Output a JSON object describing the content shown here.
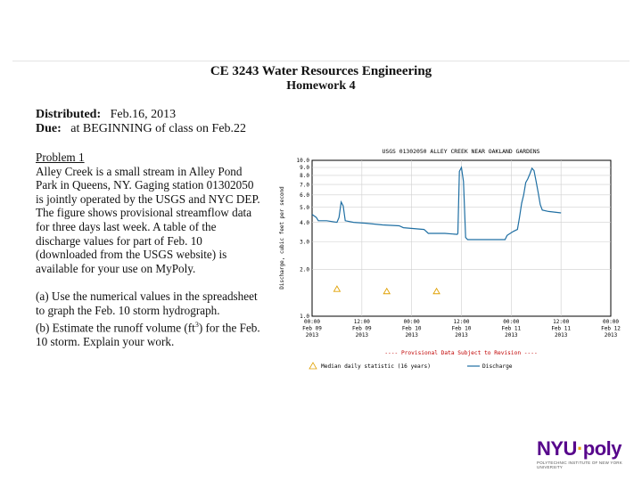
{
  "header": {
    "course_title": "CE 3243 Water Resources Engineering",
    "homework": "Homework 4"
  },
  "meta": {
    "distributed_label": "Distributed:",
    "distributed_value": "Feb.16, 2013",
    "due_label": "Due:",
    "due_value": "at BEGINNING of class on Feb.22"
  },
  "problem": {
    "heading": "Problem 1",
    "paragraph": "Alley Creek is a small stream in Alley Pond Park in Queens, NY.   Gaging station 01302050 is jointly operated by the USGS and NYC DEP.   The figure shows provisional streamflow data for three days last week.   A table of the discharge values for part of Feb. 10 (downloaded from the USGS website) is available for your use on MyPoly.",
    "part_a": "(a) Use the numerical values in the spreadsheet to graph the Feb. 10 storm hydrograph.",
    "part_b_prefix": "(b) Estimate the runoff volume (ft",
    "part_b_sup": "3",
    "part_b_suffix": ") for the Feb. 10 storm.   Explain your work."
  },
  "chart_data": {
    "type": "line",
    "title": "USGS 01302050 ALLEY CREEK NEAR OAKLAND GARDENS",
    "ylabel": "Discharge, cubic feet per second",
    "xlabel": "",
    "y_scale": "log",
    "ylim": [
      1.0,
      10.0
    ],
    "y_ticks": [
      "10.0",
      "9.0",
      "8.0",
      "7.0",
      "6.0",
      "5.0",
      "4.0",
      "3.0",
      "2.0",
      "1.0"
    ],
    "x_ticks": [
      [
        "00:00",
        "Feb 09",
        "2013"
      ],
      [
        "12:00",
        "Feb 09",
        "2013"
      ],
      [
        "00:00",
        "Feb 10",
        "2013"
      ],
      [
        "12:00",
        "Feb 10",
        "2013"
      ],
      [
        "00:00",
        "Feb 11",
        "2013"
      ],
      [
        "12:00",
        "Feb 11",
        "2013"
      ],
      [
        "00:00",
        "Feb 12",
        "2013"
      ]
    ],
    "provisional_note": "---- Provisional Data Subject to Revision ----",
    "grid": true,
    "series": [
      {
        "name": "Discharge",
        "color": "#1f6fa3",
        "points": [
          [
            0,
            4.5
          ],
          [
            2,
            4.3
          ],
          [
            3,
            4.1
          ],
          [
            7,
            4.1
          ],
          [
            12,
            4.0
          ],
          [
            13,
            4.3
          ],
          [
            14,
            5.4
          ],
          [
            15,
            5.1
          ],
          [
            16,
            4.1
          ],
          [
            20,
            4.0
          ],
          [
            26,
            3.95
          ],
          [
            34,
            3.85
          ],
          [
            42,
            3.8
          ],
          [
            44,
            3.7
          ],
          [
            54,
            3.6
          ],
          [
            56,
            3.4
          ],
          [
            64,
            3.4
          ],
          [
            70,
            3.35
          ],
          [
            70.3,
            3.4
          ],
          [
            71,
            8.5
          ],
          [
            72,
            9.0
          ],
          [
            73,
            7.3
          ],
          [
            74,
            3.2
          ],
          [
            75,
            3.1
          ],
          [
            90,
            3.1
          ],
          [
            93,
            3.1
          ],
          [
            94,
            3.3
          ],
          [
            97,
            3.5
          ],
          [
            99,
            3.6
          ],
          [
            100,
            4.3
          ],
          [
            101,
            5.3
          ],
          [
            102,
            6.0
          ],
          [
            103,
            7.2
          ],
          [
            104,
            7.6
          ],
          [
            105,
            8.2
          ],
          [
            106,
            8.9
          ],
          [
            107,
            8.6
          ],
          [
            108,
            7.3
          ],
          [
            109,
            6.2
          ],
          [
            110,
            5.2
          ],
          [
            111,
            4.8
          ],
          [
            114,
            4.7
          ],
          [
            120,
            4.6
          ]
        ]
      }
    ],
    "median_markers": {
      "name": "Median daily statistic (16 years)",
      "color": "#e0a000",
      "points": [
        [
          12,
          1.5
        ],
        [
          36,
          1.45
        ],
        [
          60,
          1.45
        ]
      ]
    }
  },
  "logo": {
    "nyu": "NYU",
    "dot": "·",
    "poly": "poly",
    "tagline": "POLYTECHNIC INSTITUTE OF NEW YORK UNIVERSITY"
  }
}
